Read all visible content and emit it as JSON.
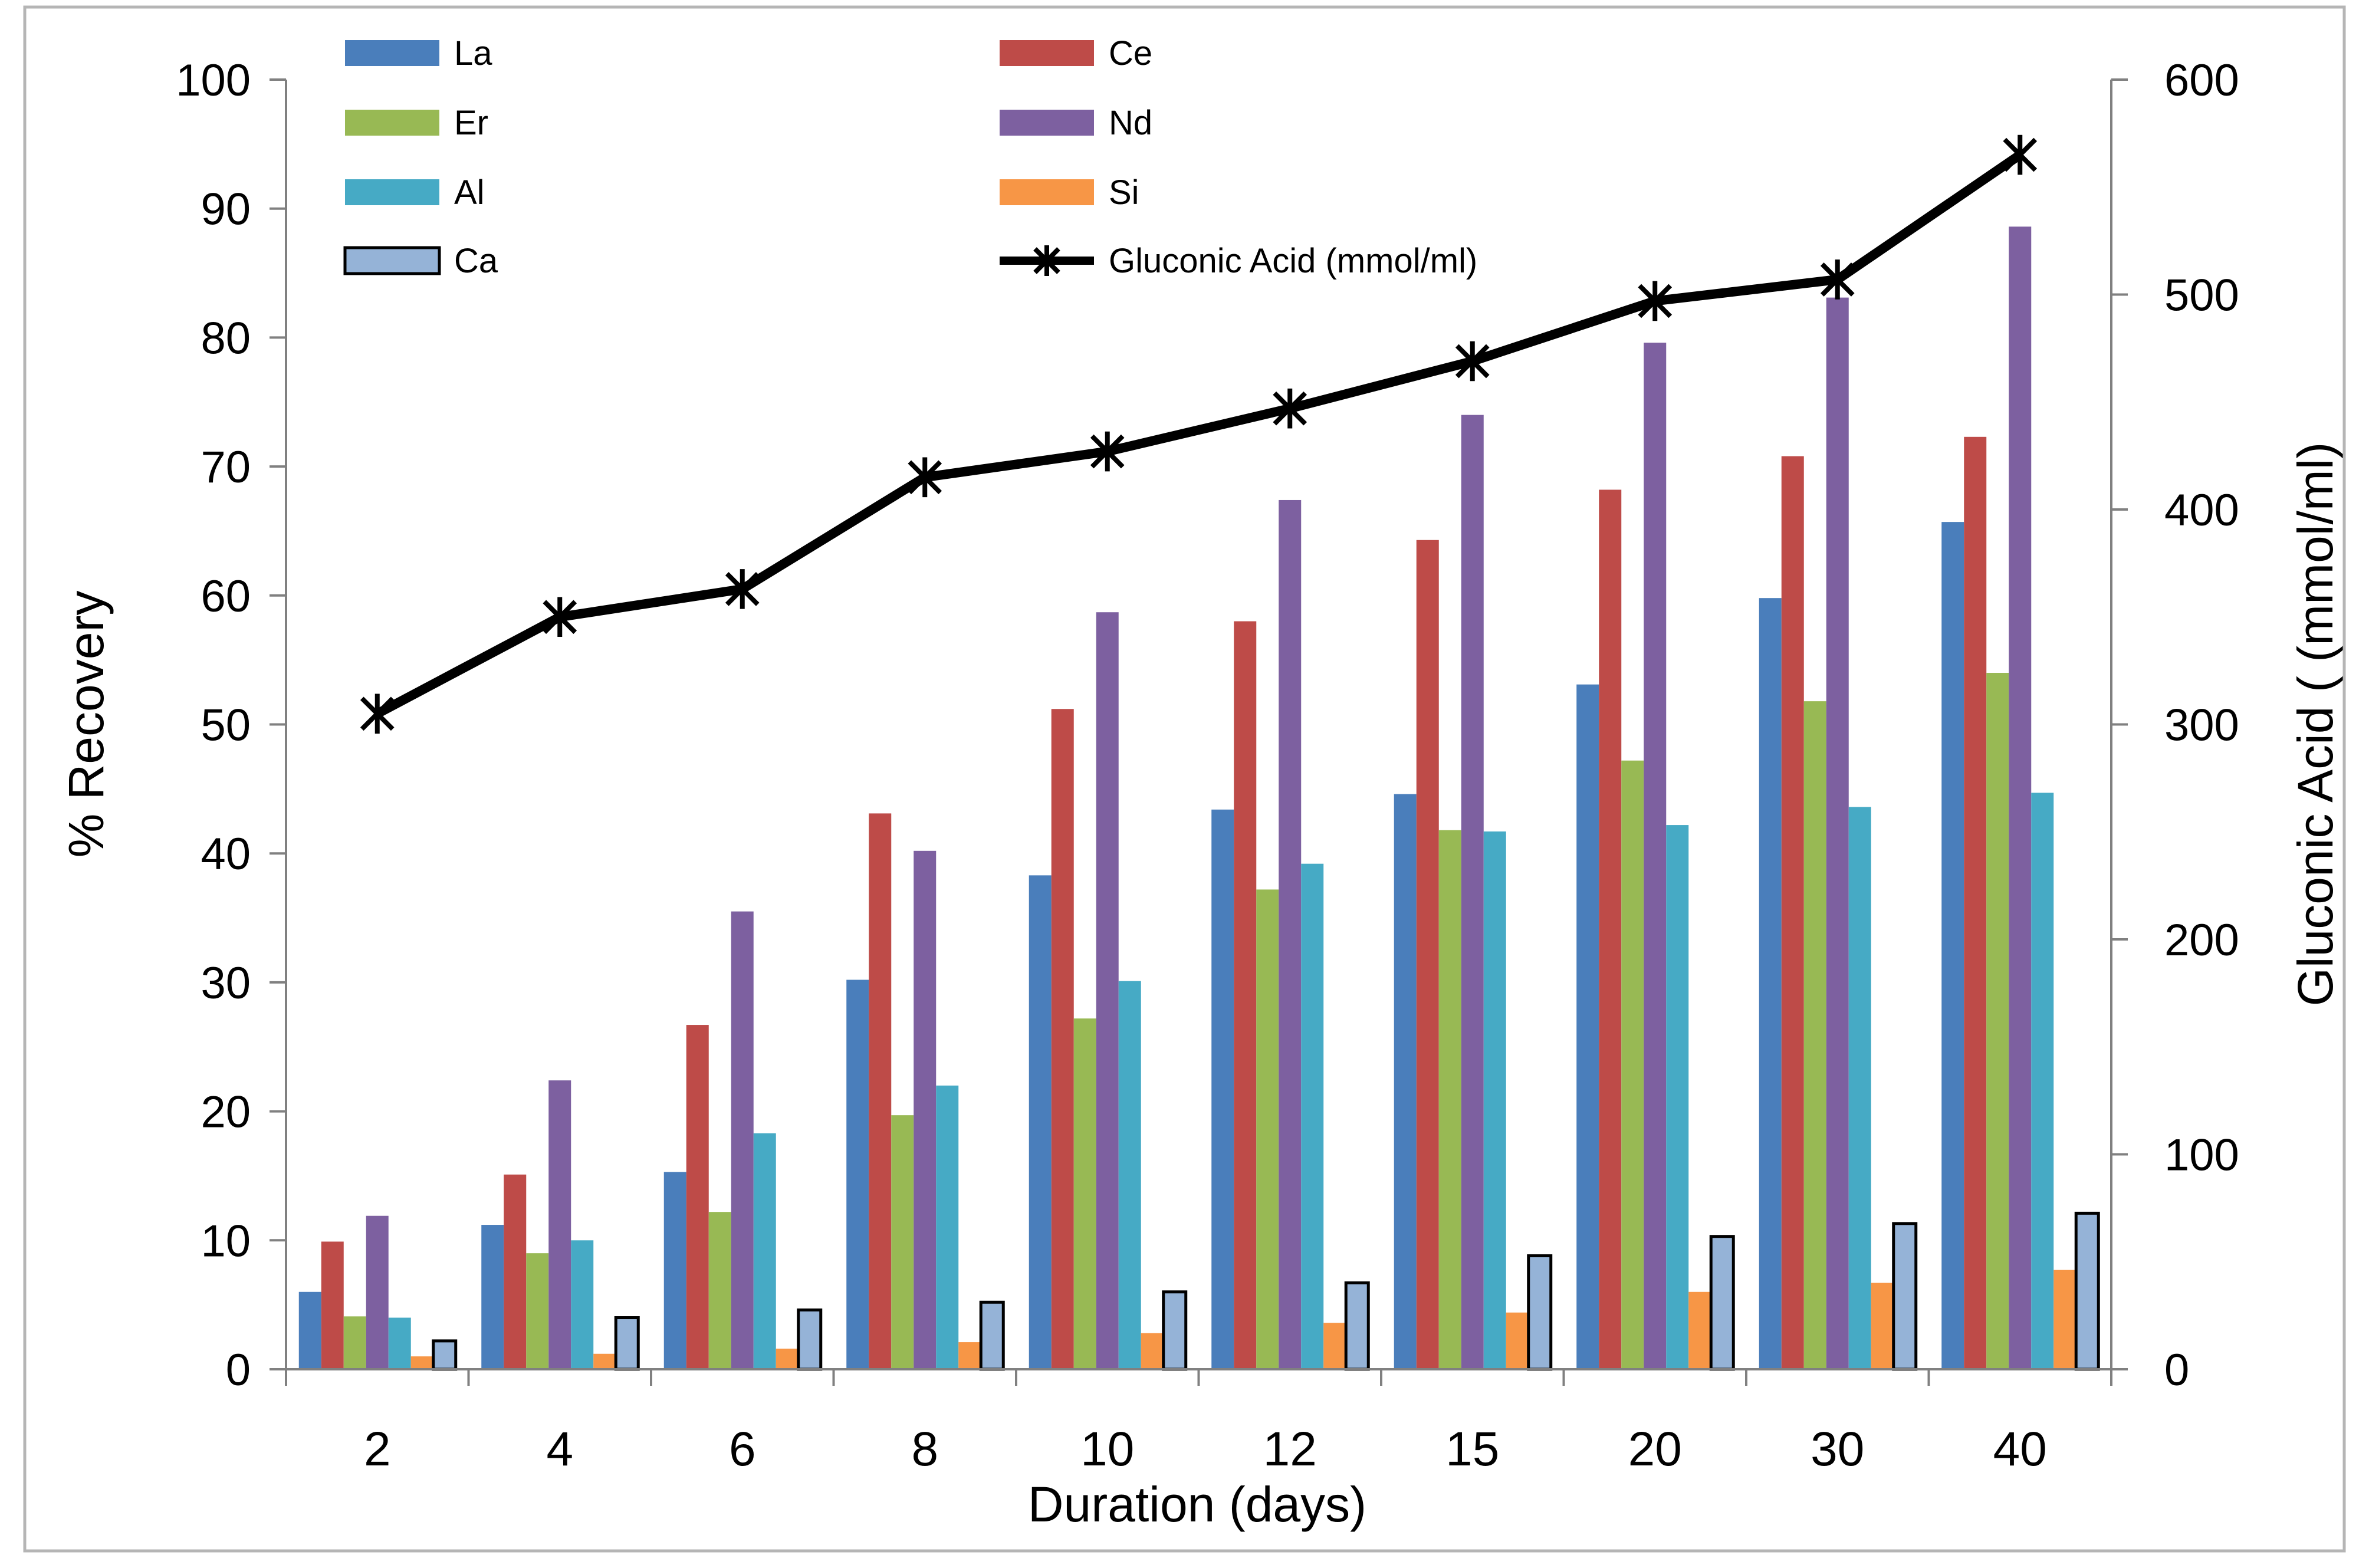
{
  "chart_data": {
    "type": "bar",
    "categories": [
      "2",
      "4",
      "6",
      "8",
      "10",
      "12",
      "15",
      "20",
      "30",
      "40"
    ],
    "xlabel": "Duration (days)",
    "ylabel": "% Recovery",
    "y2label": "Gluconic Acid ( (mmol/ml)",
    "ylim": [
      0,
      100
    ],
    "y2lim": [
      0,
      600
    ],
    "yticks": [
      "0",
      "10",
      "20",
      "30",
      "40",
      "50",
      "60",
      "70",
      "80",
      "90",
      "100"
    ],
    "y2ticks": [
      "0",
      "100",
      "200",
      "300",
      "400",
      "500",
      "600"
    ],
    "legend_position": "top",
    "grid": false,
    "series": [
      {
        "name": "La",
        "color": "#4a7ebb",
        "values": [
          6,
          11.2,
          15.3,
          30.2,
          38.3,
          43.4,
          44.6,
          53.1,
          59.8,
          65.7
        ]
      },
      {
        "name": "Ce",
        "color": "#be4b48",
        "values": [
          9.9,
          15.1,
          26.7,
          43.1,
          51.2,
          58.0,
          64.3,
          68.2,
          70.8,
          72.3
        ]
      },
      {
        "name": "Er",
        "color": "#98b954",
        "values": [
          4.1,
          9.0,
          12.2,
          19.7,
          27.2,
          37.2,
          41.8,
          47.2,
          51.8,
          54.0
        ]
      },
      {
        "name": "Nd",
        "color": "#7d60a0",
        "values": [
          11.9,
          22.4,
          35.5,
          40.2,
          58.7,
          67.4,
          74.0,
          79.6,
          83.1,
          88.6
        ]
      },
      {
        "name": "Al",
        "color": "#46aac5",
        "values": [
          4.0,
          10.0,
          18.3,
          22.0,
          30.1,
          39.2,
          41.7,
          42.2,
          43.6,
          44.7
        ]
      },
      {
        "name": "Si",
        "color": "#f79646",
        "values": [
          1.0,
          1.2,
          1.6,
          2.1,
          2.8,
          3.6,
          4.4,
          6.0,
          6.7,
          7.7
        ]
      },
      {
        "name": "Ca",
        "color": "#95b3d7",
        "outline": true,
        "values": [
          2.2,
          4.0,
          4.6,
          5.2,
          6.0,
          6.7,
          8.8,
          10.3,
          11.3,
          12.1
        ]
      }
    ],
    "line_series": {
      "name": "Gluconic Acid  (mmol/ml)",
      "color": "#000000",
      "marker": "asterisk",
      "axis": "right",
      "values": [
        305,
        350,
        363,
        415,
        427,
        447,
        469,
        497,
        507,
        565
      ]
    },
    "legend_order": [
      "La",
      "Ce",
      "Er",
      "Nd",
      "Al",
      "Si",
      "Ca",
      "Gluconic Acid  (mmol/ml)"
    ]
  }
}
